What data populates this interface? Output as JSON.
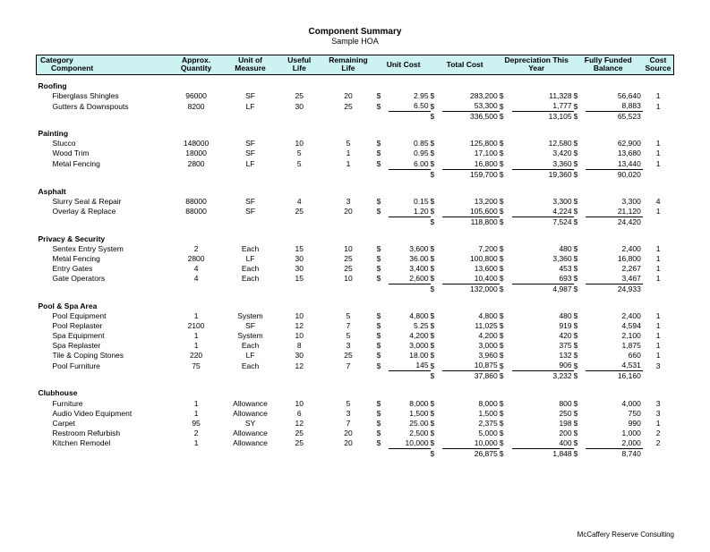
{
  "title": "Component Summary",
  "subtitle": "Sample HOA",
  "footer": "McCaffery Reserve Consulting",
  "headers": {
    "category": "Category",
    "component": "Component",
    "qty": "Approx. Quantity",
    "uom": "Unit of Measure",
    "ul": "Useful Life",
    "rl": "Remaining Life",
    "uc": "Unit Cost",
    "tc": "Total Cost",
    "dep": "Depreciation This Year",
    "ff": "Fully Funded Balance",
    "cs": "Cost Source"
  },
  "sections": [
    {
      "name": "Roofing",
      "rows": [
        {
          "comp": "Fiberglass Shingles",
          "qty": "96000",
          "uom": "SF",
          "ul": "25",
          "rl": "20",
          "uc": "2.95",
          "tc": "283,200",
          "dep": "11,328",
          "ff": "56,640",
          "cs": "1"
        },
        {
          "comp": "Gutters & Downspouts",
          "qty": "8200",
          "uom": "LF",
          "ul": "30",
          "rl": "25",
          "uc": "6.50",
          "tc": "53,300",
          "dep": "1,777",
          "ff": "8,883",
          "cs": "1"
        }
      ],
      "subtotal": {
        "tc": "336,500",
        "dep": "13,105",
        "ff": "65,523"
      }
    },
    {
      "name": "Painting",
      "rows": [
        {
          "comp": "Stucco",
          "qty": "148000",
          "uom": "SF",
          "ul": "10",
          "rl": "5",
          "uc": "0.85",
          "tc": "125,800",
          "dep": "12,580",
          "ff": "62,900",
          "cs": "1"
        },
        {
          "comp": "Wood Trim",
          "qty": "18000",
          "uom": "SF",
          "ul": "5",
          "rl": "1",
          "uc": "0.95",
          "tc": "17,100",
          "dep": "3,420",
          "ff": "13,680",
          "cs": "1"
        },
        {
          "comp": "Metal Fencing",
          "qty": "2800",
          "uom": "LF",
          "ul": "5",
          "rl": "1",
          "uc": "6.00",
          "tc": "16,800",
          "dep": "3,360",
          "ff": "13,440",
          "cs": "1"
        }
      ],
      "subtotal": {
        "tc": "159,700",
        "dep": "19,360",
        "ff": "90,020"
      }
    },
    {
      "name": "Asphalt",
      "rows": [
        {
          "comp": "Slurry Seal & Repair",
          "qty": "88000",
          "uom": "SF",
          "ul": "4",
          "rl": "3",
          "uc": "0.15",
          "tc": "13,200",
          "dep": "3,300",
          "ff": "3,300",
          "cs": "4"
        },
        {
          "comp": "Overlay & Replace",
          "qty": "88000",
          "uom": "SF",
          "ul": "25",
          "rl": "20",
          "uc": "1.20",
          "tc": "105,600",
          "dep": "4,224",
          "ff": "21,120",
          "cs": "1"
        }
      ],
      "subtotal": {
        "tc": "118,800",
        "dep": "7,524",
        "ff": "24,420"
      }
    },
    {
      "name": "Privacy & Security",
      "rows": [
        {
          "comp": "Sentex Entry System",
          "qty": "2",
          "uom": "Each",
          "ul": "15",
          "rl": "10",
          "uc": "3,600",
          "tc": "7,200",
          "dep": "480",
          "ff": "2,400",
          "cs": "1"
        },
        {
          "comp": "Metal Fencing",
          "qty": "2800",
          "uom": "LF",
          "ul": "30",
          "rl": "25",
          "uc": "36.00",
          "tc": "100,800",
          "dep": "3,360",
          "ff": "16,800",
          "cs": "1"
        },
        {
          "comp": "Entry Gates",
          "qty": "4",
          "uom": "Each",
          "ul": "30",
          "rl": "25",
          "uc": "3,400",
          "tc": "13,600",
          "dep": "453",
          "ff": "2,267",
          "cs": "1"
        },
        {
          "comp": "Gate Operators",
          "qty": "4",
          "uom": "Each",
          "ul": "15",
          "rl": "10",
          "uc": "2,600",
          "tc": "10,400",
          "dep": "693",
          "ff": "3,467",
          "cs": "1"
        }
      ],
      "subtotal": {
        "tc": "132,000",
        "dep": "4,987",
        "ff": "24,933"
      }
    },
    {
      "name": "Pool & Spa Area",
      "rows": [
        {
          "comp": "Pool Equipment",
          "qty": "1",
          "uom": "System",
          "ul": "10",
          "rl": "5",
          "uc": "4,800",
          "tc": "4,800",
          "dep": "480",
          "ff": "2,400",
          "cs": "1"
        },
        {
          "comp": "Pool Replaster",
          "qty": "2100",
          "uom": "SF",
          "ul": "12",
          "rl": "7",
          "uc": "5.25",
          "tc": "11,025",
          "dep": "919",
          "ff": "4,594",
          "cs": "1"
        },
        {
          "comp": "Spa Equipment",
          "qty": "1",
          "uom": "System",
          "ul": "10",
          "rl": "5",
          "uc": "4,200",
          "tc": "4,200",
          "dep": "420",
          "ff": "2,100",
          "cs": "1"
        },
        {
          "comp": "Spa Replaster",
          "qty": "1",
          "uom": "Each",
          "ul": "8",
          "rl": "3",
          "uc": "3,000",
          "tc": "3,000",
          "dep": "375",
          "ff": "1,875",
          "cs": "1"
        },
        {
          "comp": "Tile & Coping Stones",
          "qty": "220",
          "uom": "LF",
          "ul": "30",
          "rl": "25",
          "uc": "18.00",
          "tc": "3,960",
          "dep": "132",
          "ff": "660",
          "cs": "1"
        },
        {
          "comp": "Pool Furniture",
          "qty": "75",
          "uom": "Each",
          "ul": "12",
          "rl": "7",
          "uc": "145",
          "tc": "10,875",
          "dep": "906",
          "ff": "4,531",
          "cs": "3"
        }
      ],
      "subtotal": {
        "tc": "37,860",
        "dep": "3,232",
        "ff": "16,160"
      }
    },
    {
      "name": "Clubhouse",
      "rows": [
        {
          "comp": "Furniture",
          "qty": "1",
          "uom": "Allowance",
          "ul": "10",
          "rl": "5",
          "uc": "8,000",
          "tc": "8,000",
          "dep": "800",
          "ff": "4,000",
          "cs": "3"
        },
        {
          "comp": "Audio Video Equipment",
          "qty": "1",
          "uom": "Allowance",
          "ul": "6",
          "rl": "3",
          "uc": "1,500",
          "tc": "1,500",
          "dep": "250",
          "ff": "750",
          "cs": "3"
        },
        {
          "comp": "Carpet",
          "qty": "95",
          "uom": "SY",
          "ul": "12",
          "rl": "7",
          "uc": "25.00",
          "tc": "2,375",
          "dep": "198",
          "ff": "990",
          "cs": "1"
        },
        {
          "comp": "Restroom Refurbish",
          "qty": "2",
          "uom": "Allowance",
          "ul": "25",
          "rl": "20",
          "uc": "2,500",
          "tc": "5,000",
          "dep": "200",
          "ff": "1,000",
          "cs": "2"
        },
        {
          "comp": "Kitchen Remodel",
          "qty": "1",
          "uom": "Allowance",
          "ul": "25",
          "rl": "20",
          "uc": "10,000",
          "tc": "10,000",
          "dep": "400",
          "ff": "2,000",
          "cs": "2"
        }
      ],
      "subtotal": {
        "tc": "26,875",
        "dep": "1,848",
        "ff": "8,740"
      }
    }
  ]
}
